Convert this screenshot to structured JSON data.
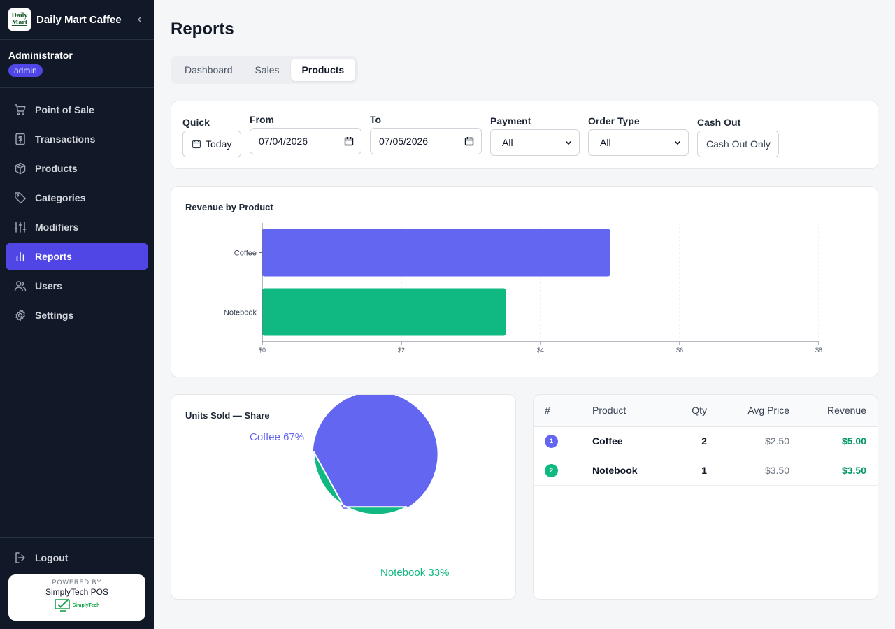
{
  "app": {
    "name": "Daily Mart Caffee",
    "logo_line1": "Daily",
    "logo_line2": "Mart"
  },
  "user": {
    "name": "Administrator",
    "role": "admin"
  },
  "nav": {
    "items": [
      {
        "label": "Point of Sale",
        "icon": "cart-icon"
      },
      {
        "label": "Transactions",
        "icon": "receipt-icon"
      },
      {
        "label": "Products",
        "icon": "box-icon"
      },
      {
        "label": "Categories",
        "icon": "tag-icon"
      },
      {
        "label": "Modifiers",
        "icon": "sliders-icon"
      },
      {
        "label": "Reports",
        "icon": "bar-chart-icon",
        "active": true
      },
      {
        "label": "Users",
        "icon": "users-icon"
      },
      {
        "label": "Settings",
        "icon": "gear-icon"
      }
    ],
    "logout": "Logout"
  },
  "powered": {
    "by": "POWERED BY",
    "name": "SimplyTech POS",
    "logo_text": "SimplyTech"
  },
  "page": {
    "title": "Reports"
  },
  "tabs": [
    "Dashboard",
    "Sales",
    "Products"
  ],
  "active_tab": "Products",
  "filters": {
    "quick": {
      "label": "Quick",
      "button": "Today"
    },
    "from": {
      "label": "From",
      "value": "07/04/2026"
    },
    "to": {
      "label": "To",
      "value": "07/05/2026"
    },
    "payment": {
      "label": "Payment",
      "value": "All"
    },
    "order_type": {
      "label": "Order Type",
      "value": "All"
    },
    "cash_out": {
      "label": "Cash Out",
      "button": "Cash Out Only"
    }
  },
  "colors": {
    "accent": "#4f46e5",
    "coffee": "#6366f1",
    "notebook": "#10b981",
    "revenue": "#059669"
  },
  "chart_data": [
    {
      "type": "bar",
      "orientation": "horizontal",
      "title": "Revenue by Product",
      "categories": [
        "Coffee",
        "Notebook"
      ],
      "values": [
        5.0,
        3.5
      ],
      "colors": [
        "#6366f1",
        "#10b981"
      ],
      "xlim": [
        0,
        8
      ],
      "xticks": [
        0,
        2,
        4,
        6,
        8
      ],
      "xtick_labels": [
        "$0",
        "$2",
        "$4",
        "$6",
        "$8"
      ],
      "grid": "vertical dashed"
    },
    {
      "type": "pie",
      "title": "Units Sold — Share",
      "labels": [
        "Coffee",
        "Notebook"
      ],
      "values": [
        67,
        33
      ],
      "slice_labels": [
        "Coffee 67%",
        "Notebook 33%"
      ],
      "colors": [
        "#6366f1",
        "#10b981"
      ]
    }
  ],
  "table": {
    "headers": {
      "rank": "#",
      "product": "Product",
      "qty": "Qty",
      "avg": "Avg Price",
      "revenue": "Revenue"
    },
    "rows": [
      {
        "rank": "1",
        "product": "Coffee",
        "qty": "2",
        "avg": "$2.50",
        "revenue": "$5.00",
        "color": "#6366f1"
      },
      {
        "rank": "2",
        "product": "Notebook",
        "qty": "1",
        "avg": "$3.50",
        "revenue": "$3.50",
        "color": "#10b981"
      }
    ]
  }
}
